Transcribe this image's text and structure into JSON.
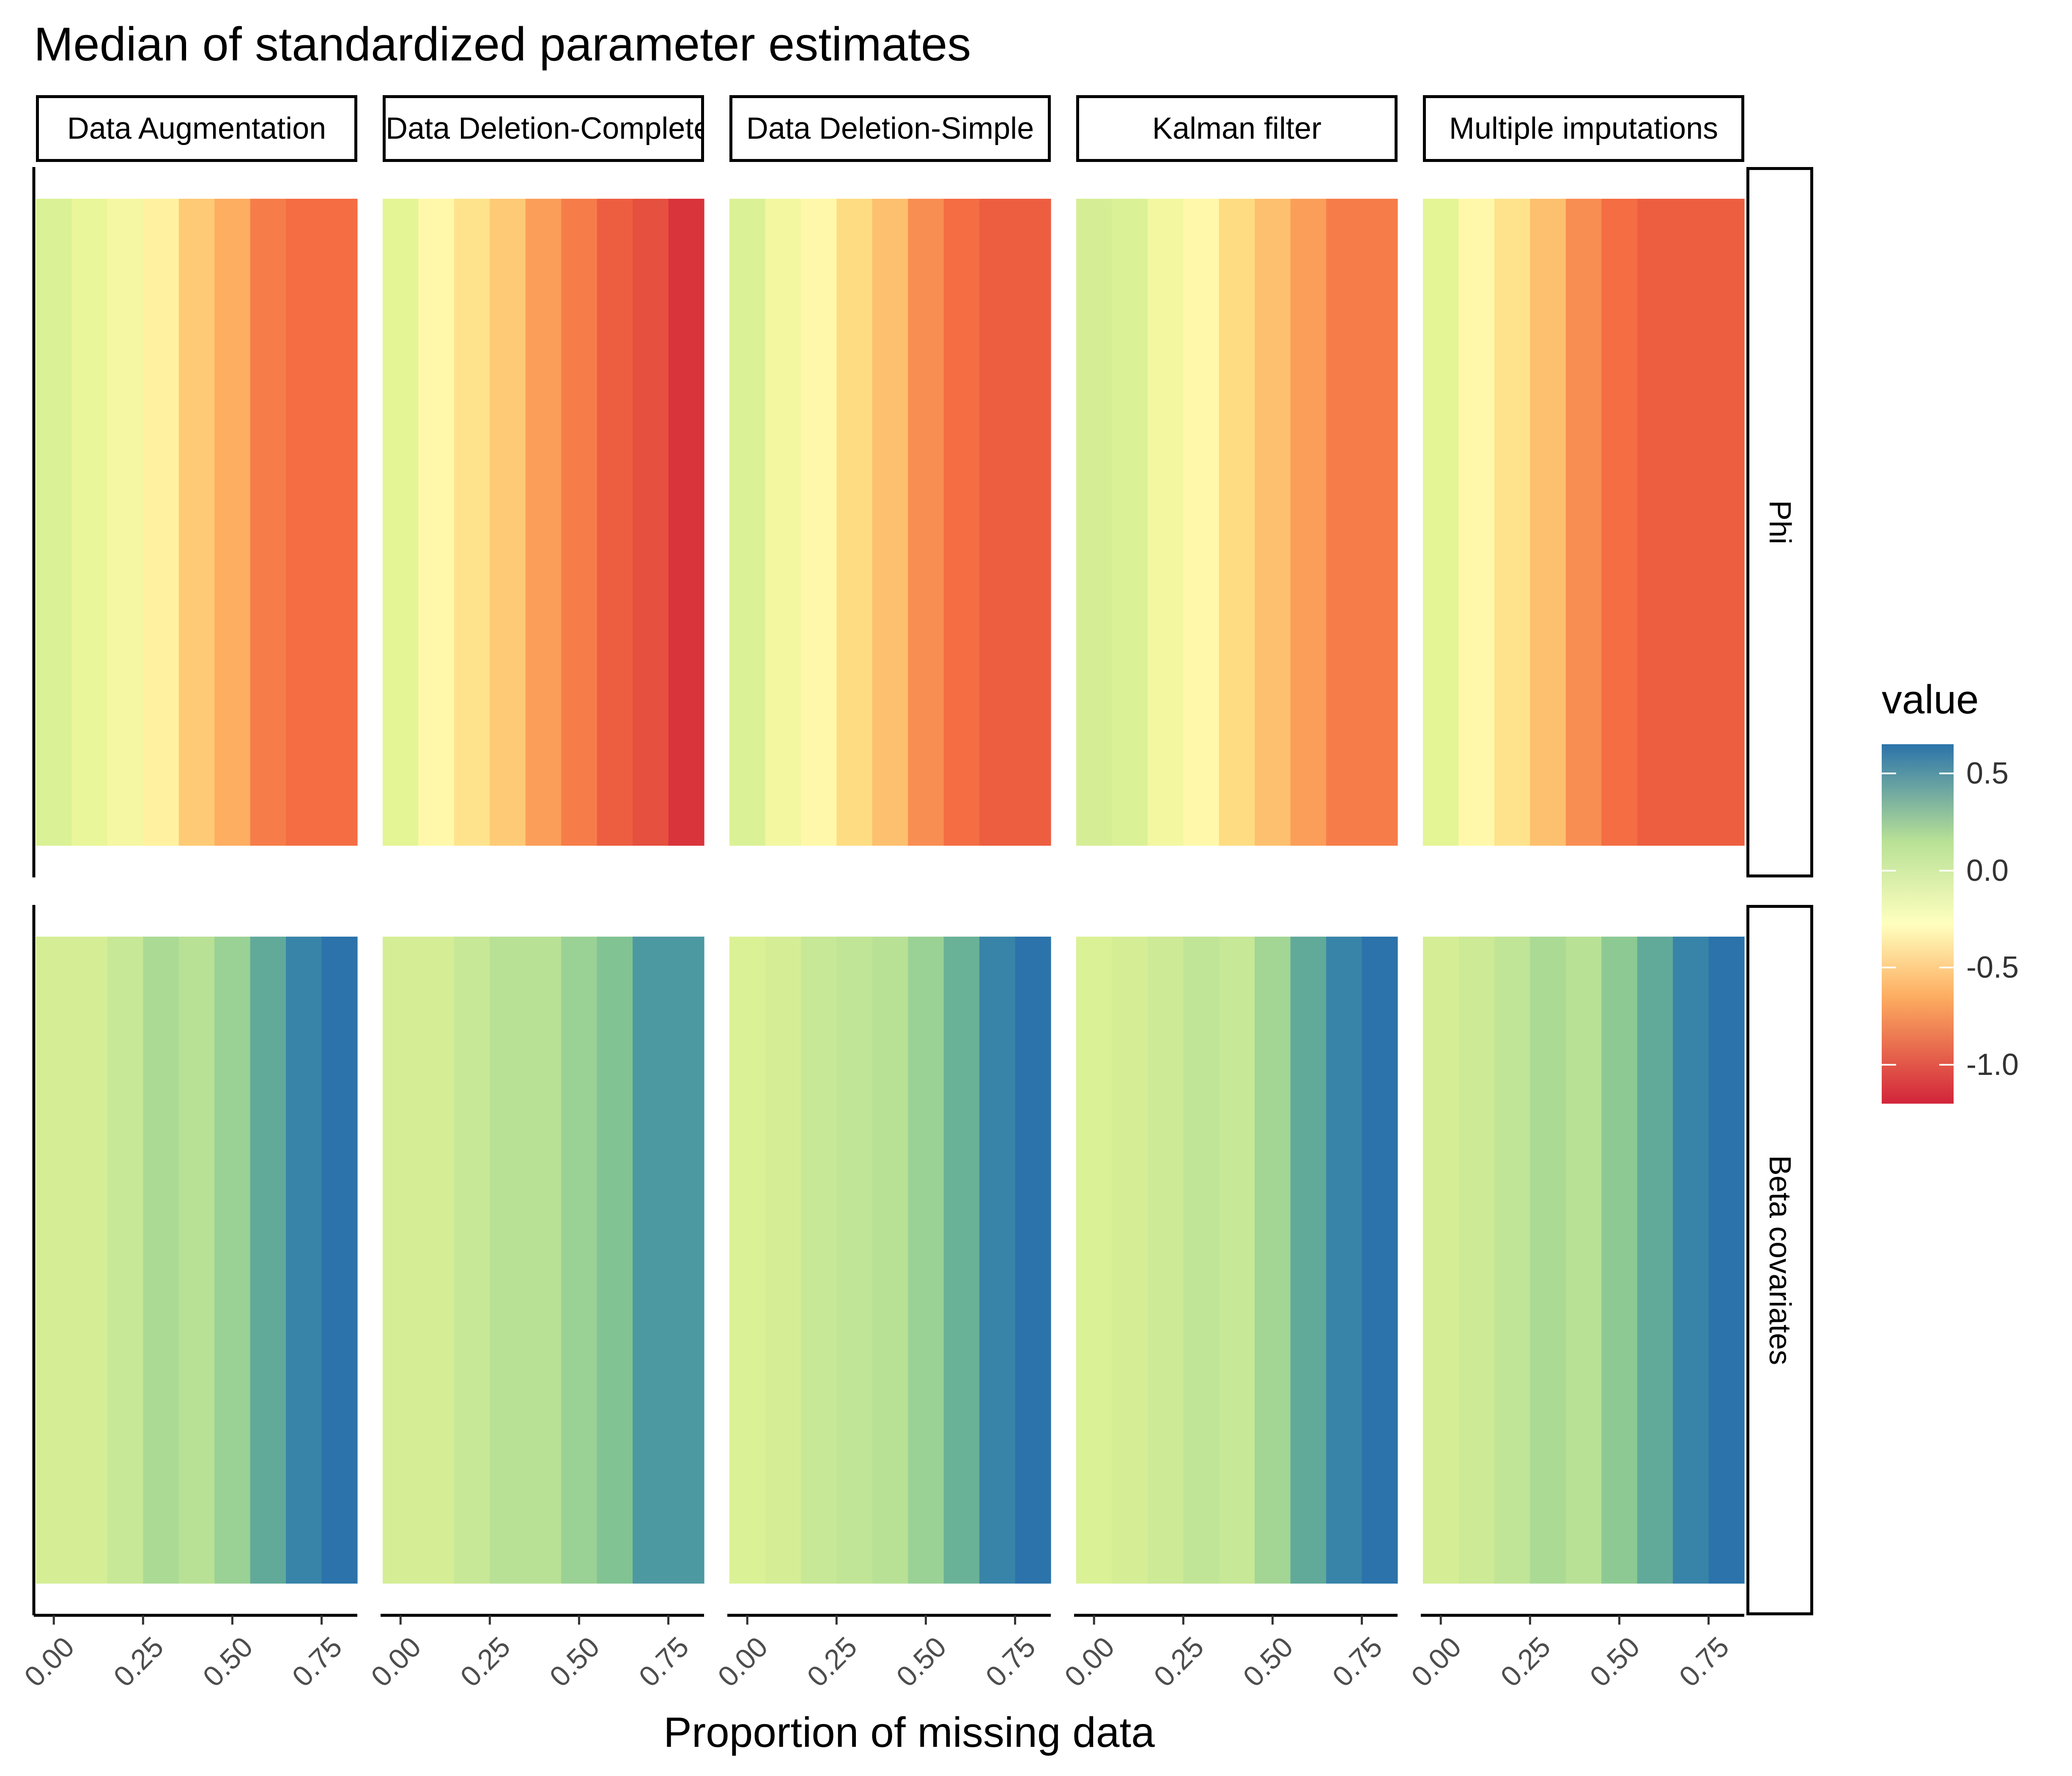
{
  "chart_data": {
    "type": "heatmap",
    "title": "Median of standardized parameter estimates",
    "xlabel": "Proportion of missing data",
    "ylabel": "",
    "facet_columns": [
      "Data Augmentation",
      "Data Deletion-Complete",
      "Data Deletion-Simple",
      "Kalman filter",
      "Multiple imputations"
    ],
    "facet_rows": [
      "Phi",
      "Beta covariates"
    ],
    "x": [
      0.0,
      0.1,
      0.2,
      0.3,
      0.4,
      0.5,
      0.6,
      0.7,
      0.8
    ],
    "x_ticks": [
      0.0,
      0.25,
      0.5,
      0.75
    ],
    "x_tick_labels": [
      "0.00",
      "0.25",
      "0.50",
      "0.75"
    ],
    "xlim": [
      -0.05,
      0.85
    ],
    "series": [
      {
        "name": "Data Augmentation",
        "row": "Phi",
        "values": [
          0.03,
          -0.05,
          -0.2,
          -0.35,
          -0.6,
          -0.75,
          -0.9,
          -0.95,
          -0.95
        ]
      },
      {
        "name": "Data Deletion-Complete",
        "row": "Phi",
        "values": [
          0.0,
          -0.3,
          -0.45,
          -0.6,
          -0.8,
          -0.9,
          -1.0,
          -1.05,
          -1.15
        ]
      },
      {
        "name": "Data Deletion-Simple",
        "row": "Phi",
        "values": [
          0.03,
          -0.15,
          -0.3,
          -0.5,
          -0.65,
          -0.85,
          -0.95,
          -1.0,
          -1.0
        ]
      },
      {
        "name": "Kalman filter",
        "row": "Phi",
        "values": [
          0.05,
          0.03,
          -0.15,
          -0.3,
          -0.5,
          -0.65,
          -0.8,
          -0.9,
          -0.9
        ]
      },
      {
        "name": "Multiple imputations",
        "row": "Phi",
        "values": [
          0.0,
          -0.3,
          -0.45,
          -0.65,
          -0.85,
          -0.95,
          -1.0,
          -1.0,
          -1.0
        ]
      },
      {
        "name": "Data Augmentation",
        "row": "Beta covariates",
        "values": [
          0.05,
          0.05,
          0.1,
          0.18,
          0.15,
          0.22,
          0.38,
          0.55,
          0.65
        ]
      },
      {
        "name": "Data Deletion-Complete",
        "row": "Beta covariates",
        "values": [
          0.05,
          0.05,
          0.1,
          0.15,
          0.15,
          0.22,
          0.28,
          0.45,
          0.45
        ]
      },
      {
        "name": "Data Deletion-Simple",
        "row": "Beta covariates",
        "values": [
          0.03,
          0.05,
          0.1,
          0.12,
          0.15,
          0.22,
          0.35,
          0.55,
          0.65
        ]
      },
      {
        "name": "Kalman filter",
        "row": "Beta covariates",
        "values": [
          0.03,
          0.05,
          0.08,
          0.12,
          0.1,
          0.2,
          0.38,
          0.55,
          0.65
        ]
      },
      {
        "name": "Multiple imputations",
        "row": "Beta covariates",
        "values": [
          0.05,
          0.08,
          0.12,
          0.18,
          0.15,
          0.25,
          0.38,
          0.55,
          0.65
        ]
      }
    ],
    "legend": {
      "title": "value",
      "placement": "right",
      "range": [
        -1.2,
        0.65
      ],
      "ticks": [
        0.5,
        0.0,
        -0.5,
        -1.0
      ],
      "tick_labels": [
        "0.5",
        "0.0",
        "-0.5",
        "-1.0"
      ],
      "colors": [
        "#2b73aa",
        "#b8e196",
        "#ffffbf",
        "#fdae61",
        "#d2243a"
      ]
    },
    "grid": false
  }
}
